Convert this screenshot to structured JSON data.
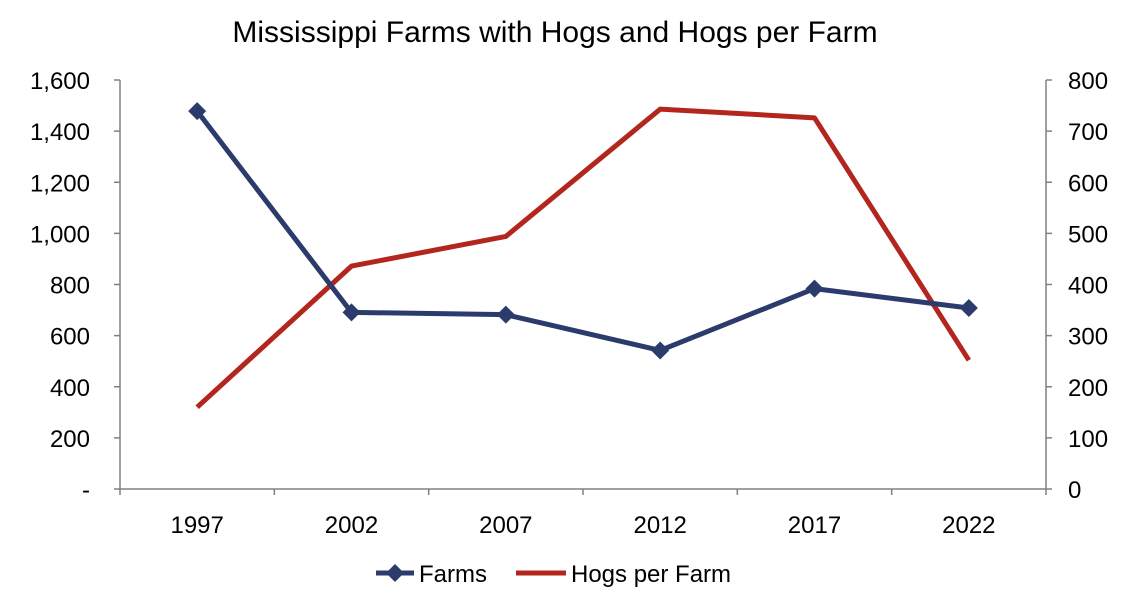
{
  "chart_data": {
    "type": "line",
    "title": "Mississippi Farms with Hogs and Hogs per Farm",
    "categories": [
      "1997",
      "2002",
      "2007",
      "2012",
      "2017",
      "2022"
    ],
    "y_left": {
      "ylim": [
        0,
        1600
      ],
      "ticks": [
        0,
        200,
        400,
        600,
        800,
        1000,
        1200,
        1400,
        1600
      ],
      "tick_labels": [
        "-",
        "200",
        "400",
        "600",
        "800",
        "1,000",
        "1,200",
        "1,400",
        "1,600"
      ]
    },
    "y_right": {
      "ylim": [
        0,
        800
      ],
      "ticks": [
        0,
        100,
        200,
        300,
        400,
        500,
        600,
        700,
        800
      ],
      "tick_labels": [
        "0",
        "100",
        "200",
        "300",
        "400",
        "500",
        "600",
        "700",
        "800"
      ]
    },
    "series": [
      {
        "name": "Farms",
        "axis": "left",
        "color": "#2b3b6b",
        "marker": "diamond",
        "values": [
          1478,
          691,
          682,
          542,
          784,
          708
        ]
      },
      {
        "name": "Hogs per Farm",
        "axis": "right",
        "color": "#b3261e",
        "marker": "none",
        "values": [
          160,
          436,
          494,
          743,
          726,
          252
        ]
      }
    ],
    "legend": "bottom",
    "grid": false
  }
}
